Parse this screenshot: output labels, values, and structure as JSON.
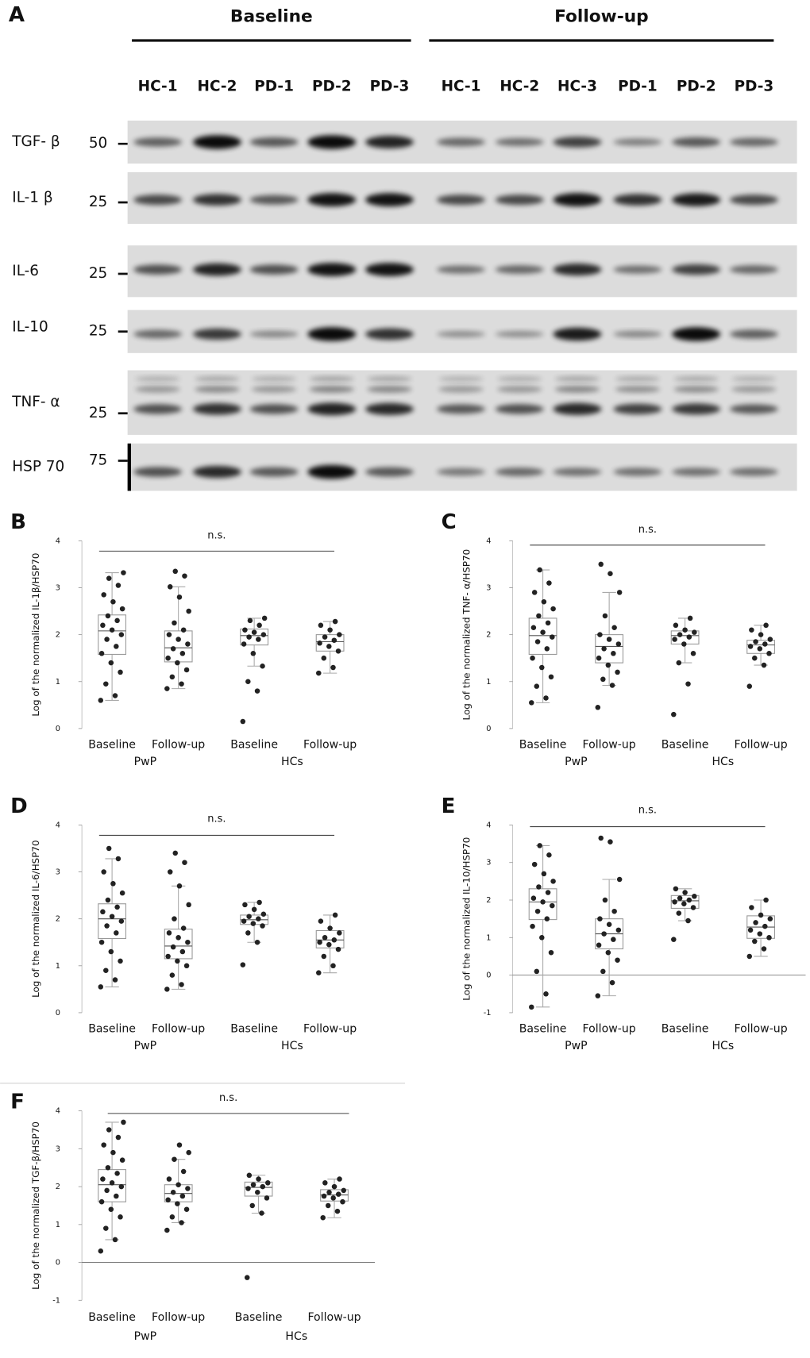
{
  "blot": {
    "panel": "A",
    "groups": [
      {
        "label": "Baseline",
        "lanes": [
          "HC-1",
          "HC-2",
          "PD-1",
          "PD-2",
          "PD-3"
        ]
      },
      {
        "label": "Follow-up",
        "lanes": [
          "HC-1",
          "HC-2",
          "HC-3",
          "PD-1",
          "PD-2",
          "PD-3"
        ]
      }
    ],
    "rows": [
      {
        "label": "TGF- β",
        "marker": "50"
      },
      {
        "label": "IL-1 β",
        "marker": "25"
      },
      {
        "label": "IL-6",
        "marker": "25"
      },
      {
        "label": "IL-10",
        "marker": "25"
      },
      {
        "label": "TNF- α",
        "marker": "25"
      },
      {
        "label": "HSP 70",
        "marker": "75"
      }
    ]
  },
  "chart_data": [
    {
      "type": "box",
      "panel": "B",
      "ylabel": "Log of the normalized IL-1β/HSP70",
      "annotation": "n.s.",
      "categories": [
        "Baseline",
        "Follow-up",
        "Baseline",
        "Follow-up"
      ],
      "groups": [
        "PwP",
        "HCs"
      ],
      "ylim": [
        0,
        4
      ],
      "yticks": [
        0,
        1,
        2,
        3,
        4
      ],
      "boxes": [
        {
          "min": 0.6,
          "q1": 1.58,
          "median": 2.08,
          "q3": 2.42,
          "max": 3.32
        },
        {
          "min": 0.85,
          "q1": 1.42,
          "median": 1.72,
          "q3": 2.08,
          "max": 3.02
        },
        {
          "min": 1.33,
          "q1": 1.78,
          "median": 1.98,
          "q3": 2.12,
          "max": 2.35
        },
        {
          "min": 1.18,
          "q1": 1.65,
          "median": 1.85,
          "q3": 2.0,
          "max": 2.28
        }
      ],
      "points": [
        [
          0.6,
          0.7,
          0.95,
          1.2,
          1.4,
          1.6,
          1.75,
          1.9,
          2.0,
          2.1,
          2.2,
          2.3,
          2.4,
          2.55,
          2.7,
          2.85,
          3.05,
          3.2,
          3.32
        ],
        [
          0.85,
          0.95,
          1.1,
          1.25,
          1.4,
          1.5,
          1.6,
          1.7,
          1.8,
          1.9,
          2.0,
          2.1,
          2.25,
          2.5,
          2.8,
          3.02,
          3.25,
          3.35
        ],
        [
          0.15,
          0.8,
          1.0,
          1.33,
          1.6,
          1.8,
          1.9,
          1.95,
          2.0,
          2.05,
          2.1,
          2.2,
          2.3,
          2.35
        ],
        [
          1.18,
          1.3,
          1.5,
          1.65,
          1.75,
          1.82,
          1.88,
          1.95,
          2.0,
          2.1,
          2.2,
          2.28
        ]
      ]
    },
    {
      "type": "box",
      "panel": "C",
      "ylabel": "Log of the normalized TNF- α/HSP70",
      "annotation": "n.s.",
      "categories": [
        "Baseline",
        "Follow-up",
        "Baseline",
        "Follow-up"
      ],
      "groups": [
        "PwP",
        "HCs"
      ],
      "ylim": [
        0,
        4
      ],
      "yticks": [
        0,
        1,
        2,
        3,
        4
      ],
      "boxes": [
        {
          "min": 0.55,
          "q1": 1.58,
          "median": 1.98,
          "q3": 2.35,
          "max": 3.38
        },
        {
          "min": 0.92,
          "q1": 1.4,
          "median": 1.75,
          "q3": 2.0,
          "max": 2.9
        },
        {
          "min": 1.4,
          "q1": 1.8,
          "median": 1.98,
          "q3": 2.08,
          "max": 2.35
        },
        {
          "min": 1.35,
          "q1": 1.6,
          "median": 1.78,
          "q3": 1.88,
          "max": 2.2
        }
      ],
      "points": [
        [
          0.55,
          0.65,
          0.9,
          1.1,
          1.3,
          1.5,
          1.7,
          1.85,
          1.95,
          2.05,
          2.15,
          2.25,
          2.4,
          2.55,
          2.7,
          2.9,
          3.1,
          3.38
        ],
        [
          0.45,
          0.92,
          1.05,
          1.2,
          1.35,
          1.5,
          1.6,
          1.7,
          1.8,
          1.9,
          2.0,
          2.15,
          2.4,
          2.9,
          3.3,
          3.5
        ],
        [
          0.3,
          0.95,
          1.4,
          1.6,
          1.8,
          1.9,
          1.95,
          2.0,
          2.05,
          2.1,
          2.2,
          2.35
        ],
        [
          0.9,
          1.35,
          1.5,
          1.6,
          1.7,
          1.75,
          1.8,
          1.85,
          1.9,
          2.0,
          2.1,
          2.2
        ]
      ]
    },
    {
      "type": "box",
      "panel": "D",
      "ylabel": "Log of the normalized IL-6/HSP70",
      "annotation": "n.s.",
      "categories": [
        "Baseline",
        "Follow-up",
        "Baseline",
        "Follow-up"
      ],
      "groups": [
        "PwP",
        "HCs"
      ],
      "ylim": [
        0,
        4
      ],
      "yticks": [
        0,
        1,
        2,
        3,
        4
      ],
      "boxes": [
        {
          "min": 0.55,
          "q1": 1.58,
          "median": 2.0,
          "q3": 2.32,
          "max": 3.28
        },
        {
          "min": 0.5,
          "q1": 1.15,
          "median": 1.42,
          "q3": 1.78,
          "max": 2.7
        },
        {
          "min": 1.5,
          "q1": 1.88,
          "median": 1.98,
          "q3": 2.08,
          "max": 2.35
        },
        {
          "min": 0.85,
          "q1": 1.38,
          "median": 1.55,
          "q3": 1.75,
          "max": 2.08
        }
      ],
      "points": [
        [
          0.55,
          0.7,
          0.9,
          1.1,
          1.3,
          1.5,
          1.7,
          1.85,
          1.95,
          2.05,
          2.15,
          2.25,
          2.4,
          2.55,
          2.75,
          3.0,
          3.28,
          3.5
        ],
        [
          0.5,
          0.6,
          0.8,
          1.0,
          1.1,
          1.2,
          1.3,
          1.4,
          1.5,
          1.6,
          1.7,
          1.8,
          2.0,
          2.3,
          2.7,
          3.0,
          3.2,
          3.4
        ],
        [
          1.02,
          1.5,
          1.7,
          1.85,
          1.9,
          1.95,
          2.0,
          2.05,
          2.1,
          2.2,
          2.3,
          2.35
        ],
        [
          0.85,
          1.0,
          1.2,
          1.35,
          1.45,
          1.5,
          1.55,
          1.6,
          1.7,
          1.8,
          1.95,
          2.08
        ]
      ]
    },
    {
      "type": "box",
      "panel": "E",
      "ylabel": "Log of the normalized IL-10/HSP70",
      "annotation": "n.s.",
      "categories": [
        "Baseline",
        "Follow-up",
        "Baseline",
        "Follow-up"
      ],
      "groups": [
        "PwP",
        "HCs"
      ],
      "ylim": [
        -1,
        4
      ],
      "yticks": [
        -1,
        0,
        1,
        2,
        3,
        4
      ],
      "boxes": [
        {
          "min": -0.85,
          "q1": 1.48,
          "median": 1.95,
          "q3": 2.3,
          "max": 3.45
        },
        {
          "min": -0.55,
          "q1": 0.7,
          "median": 1.1,
          "q3": 1.5,
          "max": 2.55
        },
        {
          "min": 1.45,
          "q1": 1.78,
          "median": 1.98,
          "q3": 2.12,
          "max": 2.3
        },
        {
          "min": 0.5,
          "q1": 0.98,
          "median": 1.28,
          "q3": 1.58,
          "max": 2.0
        }
      ],
      "points": [
        [
          -0.85,
          -0.5,
          0.1,
          0.6,
          1.0,
          1.3,
          1.5,
          1.7,
          1.85,
          1.95,
          2.05,
          2.2,
          2.35,
          2.5,
          2.7,
          2.95,
          3.2,
          3.45
        ],
        [
          -0.55,
          -0.2,
          0.1,
          0.4,
          0.6,
          0.8,
          0.95,
          1.1,
          1.2,
          1.35,
          1.5,
          1.7,
          2.0,
          2.55,
          3.55,
          3.65
        ],
        [
          0.95,
          1.45,
          1.65,
          1.8,
          1.9,
          1.95,
          2.0,
          2.05,
          2.1,
          2.2,
          2.3
        ],
        [
          0.5,
          0.7,
          0.9,
          1.0,
          1.1,
          1.2,
          1.3,
          1.4,
          1.5,
          1.6,
          1.8,
          2.0
        ]
      ]
    },
    {
      "type": "box",
      "panel": "F",
      "ylabel": "Log of the normalized TGF-β/HSP70",
      "annotation": "n.s.",
      "categories": [
        "Baseline",
        "Follow-up",
        "Baseline",
        "Follow-up"
      ],
      "groups": [
        "PwP",
        "HCs"
      ],
      "ylim": [
        -1,
        4
      ],
      "yticks": [
        -1,
        0,
        1,
        2,
        3,
        4
      ],
      "boxes": [
        {
          "min": 0.6,
          "q1": 1.6,
          "median": 2.05,
          "q3": 2.45,
          "max": 3.7
        },
        {
          "min": 1.05,
          "q1": 1.6,
          "median": 1.82,
          "q3": 2.05,
          "max": 2.72
        },
        {
          "min": 1.3,
          "q1": 1.75,
          "median": 1.98,
          "q3": 2.12,
          "max": 2.3
        },
        {
          "min": 1.18,
          "q1": 1.62,
          "median": 1.78,
          "q3": 1.92,
          "max": 2.2
        }
      ],
      "points": [
        [
          0.3,
          0.6,
          0.9,
          1.2,
          1.4,
          1.6,
          1.75,
          1.9,
          2.0,
          2.1,
          2.2,
          2.35,
          2.5,
          2.7,
          2.9,
          3.1,
          3.3,
          3.5,
          3.7
        ],
        [
          0.85,
          1.05,
          1.2,
          1.4,
          1.55,
          1.65,
          1.75,
          1.85,
          1.95,
          2.05,
          2.2,
          2.4,
          2.72,
          2.9,
          3.1
        ],
        [
          -0.4,
          1.3,
          1.5,
          1.7,
          1.85,
          1.95,
          2.0,
          2.05,
          2.1,
          2.2,
          2.3
        ],
        [
          1.18,
          1.35,
          1.5,
          1.6,
          1.7,
          1.75,
          1.8,
          1.85,
          1.9,
          2.0,
          2.1,
          2.2
        ]
      ]
    }
  ]
}
